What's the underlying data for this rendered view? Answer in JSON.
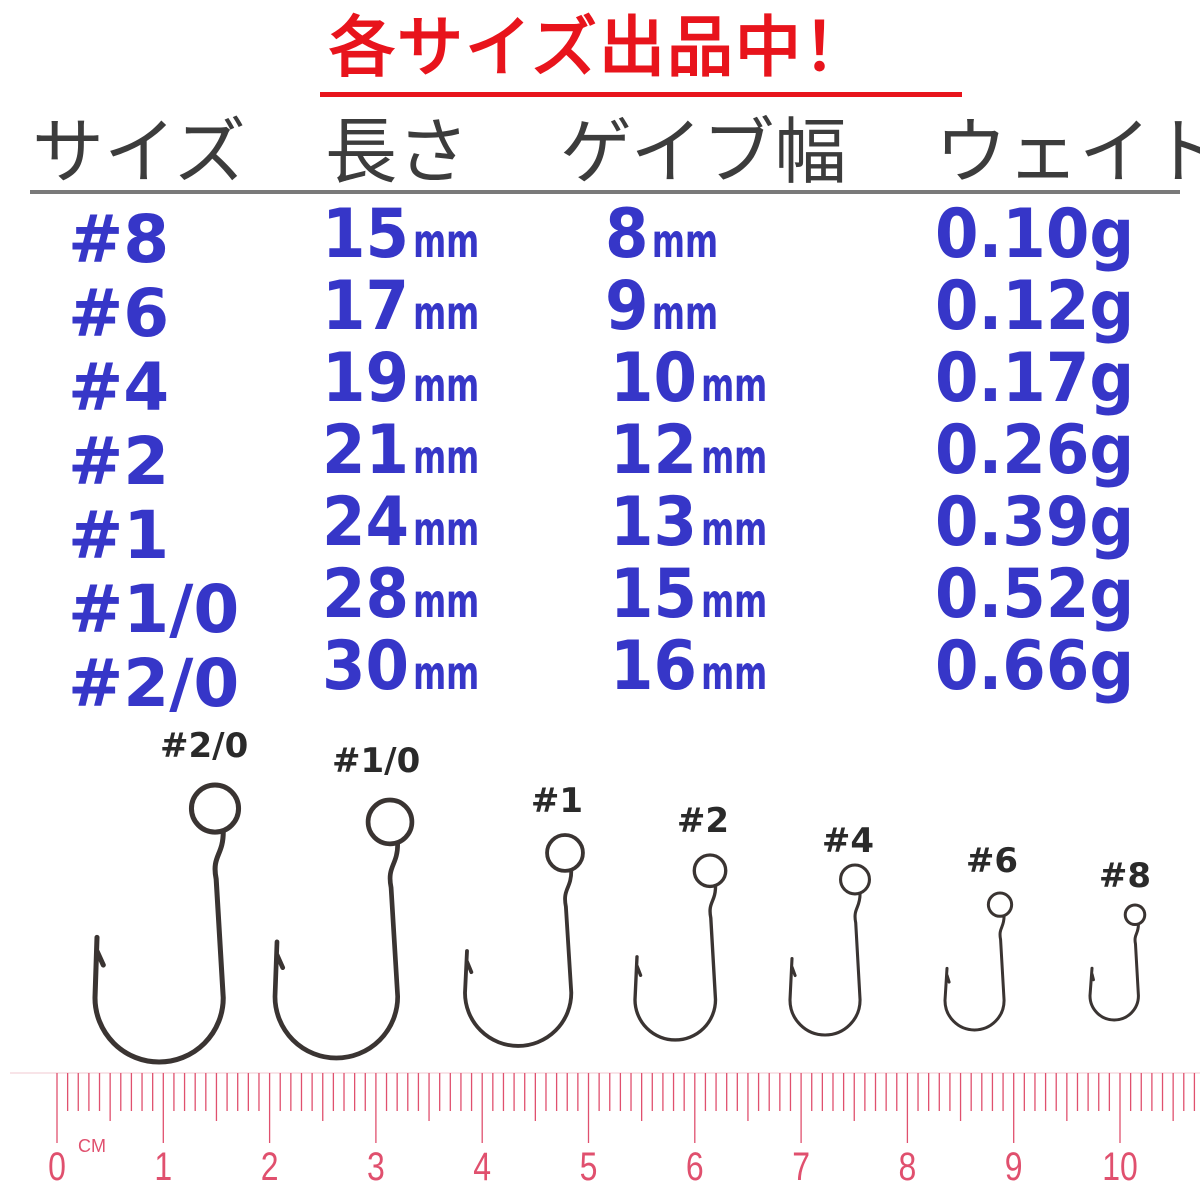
{
  "title": "各サイズ出品中！",
  "headers": [
    "サイズ",
    "長さ",
    "ゲイブ幅",
    "ウェイト"
  ],
  "rows": [
    {
      "size": "#8",
      "length": "15",
      "gape": "8",
      "weight": "0.10g"
    },
    {
      "size": "#6",
      "length": "17",
      "gape": "9",
      "weight": "0.12g"
    },
    {
      "size": "#4",
      "length": "19",
      "gape": "10",
      "weight": "0.17g"
    },
    {
      "size": "#2",
      "length": "21",
      "gape": "12",
      "weight": "0.26g"
    },
    {
      "size": "#1",
      "length": "24",
      "gape": "13",
      "weight": "0.39g"
    },
    {
      "size": "#1/0",
      "length": "28",
      "gape": "15",
      "weight": "0.52g"
    },
    {
      "size": "#2/0",
      "length": "30",
      "gape": "16",
      "weight": "0.66g"
    }
  ],
  "unit": "mm",
  "hooks": [
    "#2/0",
    "#1/0",
    "#1",
    "#2",
    "#4",
    "#6",
    "#8"
  ],
  "ruler": {
    "unit": "CM",
    "labels": [
      "0",
      "1",
      "2",
      "3",
      "4",
      "5",
      "6",
      "7",
      "8",
      "9",
      "10"
    ]
  },
  "colors": {
    "title": "#e8141c",
    "values": "#3636c8",
    "ruler": "#e0506e",
    "hook": "#3a3432"
  }
}
